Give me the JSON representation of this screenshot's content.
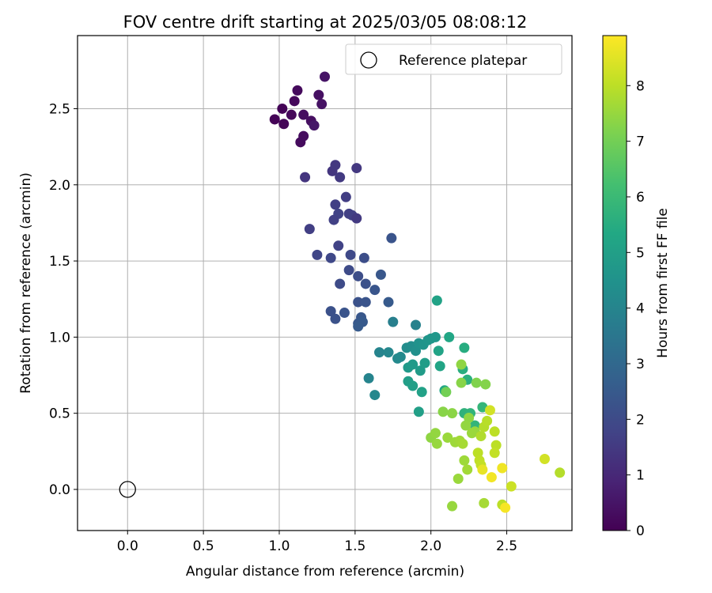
{
  "chart_data": {
    "type": "scatter",
    "title": "FOV centre drift starting at 2025/03/05 08:08:12",
    "xlabel": "Angular distance from reference (arcmin)",
    "ylabel": "Rotation from reference (arcmin)",
    "xlim": [
      -0.33,
      2.93
    ],
    "ylim": [
      -0.27,
      2.98
    ],
    "xticks": [
      0.0,
      0.5,
      1.0,
      1.5,
      2.0,
      2.5
    ],
    "xtick_labels": [
      "0.0",
      "0.5",
      "1.0",
      "1.5",
      "2.0",
      "2.5"
    ],
    "yticks": [
      0.0,
      0.5,
      1.0,
      1.5,
      2.0,
      2.5
    ],
    "ytick_labels": [
      "0.0",
      "0.5",
      "1.0",
      "1.5",
      "2.0",
      "2.5"
    ],
    "grid": true,
    "legend": {
      "placement": "upper right",
      "entries": [
        "Reference platepar"
      ]
    },
    "reference_point": {
      "name": "Reference platepar",
      "x": 0.0,
      "y": 0.0,
      "marker": "open-circle"
    },
    "colorbar": {
      "label": "Hours from first FF file",
      "colormap": "viridis",
      "range": [
        0,
        8.9
      ],
      "ticks": [
        0,
        1,
        2,
        3,
        4,
        5,
        6,
        7,
        8
      ],
      "tick_labels": [
        "0",
        "1",
        "2",
        "3",
        "4",
        "5",
        "6",
        "7",
        "8"
      ]
    },
    "series": [
      {
        "columns": [
          "x",
          "y",
          "hours"
        ],
        "points": [
          [
            0.97,
            2.43,
            0.05
          ],
          [
            1.02,
            2.5,
            0.08
          ],
          [
            1.03,
            2.4,
            0.12
          ],
          [
            1.08,
            2.46,
            0.15
          ],
          [
            1.1,
            2.55,
            0.18
          ],
          [
            1.12,
            2.62,
            0.22
          ],
          [
            1.14,
            2.28,
            0.25
          ],
          [
            1.16,
            2.32,
            0.28
          ],
          [
            1.16,
            2.46,
            0.32
          ],
          [
            1.21,
            2.42,
            0.35
          ],
          [
            1.23,
            2.39,
            0.55
          ],
          [
            1.26,
            2.59,
            0.38
          ],
          [
            1.28,
            2.53,
            0.42
          ],
          [
            1.3,
            2.71,
            0.48
          ],
          [
            1.17,
            2.05,
            1.35
          ],
          [
            1.35,
            2.09,
            1.4
          ],
          [
            1.37,
            2.13,
            1.45
          ],
          [
            1.4,
            2.05,
            1.5
          ],
          [
            1.51,
            2.11,
            1.45
          ],
          [
            1.44,
            1.92,
            1.6
          ],
          [
            1.37,
            1.87,
            1.65
          ],
          [
            1.46,
            1.81,
            1.7
          ],
          [
            1.39,
            1.81,
            1.75
          ],
          [
            1.36,
            1.77,
            1.7
          ],
          [
            1.48,
            1.8,
            1.7
          ],
          [
            1.51,
            1.78,
            1.5
          ],
          [
            1.2,
            1.71,
            1.65
          ],
          [
            1.39,
            1.6,
            1.75
          ],
          [
            1.74,
            1.65,
            2.3
          ],
          [
            1.25,
            1.54,
            1.85
          ],
          [
            1.34,
            1.52,
            1.9
          ],
          [
            1.47,
            1.54,
            1.95
          ],
          [
            1.56,
            1.52,
            2.1
          ],
          [
            1.46,
            1.44,
            2.0
          ],
          [
            1.52,
            1.4,
            2.1
          ],
          [
            1.4,
            1.35,
            2.0
          ],
          [
            1.57,
            1.35,
            2.2
          ],
          [
            1.63,
            1.31,
            2.35
          ],
          [
            1.67,
            1.41,
            2.4
          ],
          [
            1.52,
            1.23,
            2.25
          ],
          [
            1.57,
            1.23,
            2.3
          ],
          [
            1.72,
            1.23,
            2.5
          ],
          [
            1.34,
            1.17,
            2.2
          ],
          [
            1.37,
            1.12,
            2.25
          ],
          [
            1.43,
            1.16,
            2.3
          ],
          [
            1.54,
            1.13,
            2.4
          ],
          [
            1.52,
            1.09,
            2.45
          ],
          [
            1.55,
            1.1,
            2.5
          ],
          [
            1.52,
            1.07,
            2.55
          ],
          [
            1.75,
            1.1,
            3.8
          ],
          [
            1.9,
            1.08,
            3.9
          ],
          [
            1.66,
            0.9,
            4.0
          ],
          [
            1.72,
            0.9,
            4.1
          ],
          [
            1.78,
            0.86,
            4.15
          ],
          [
            1.8,
            0.87,
            4.2
          ],
          [
            1.84,
            0.93,
            4.3
          ],
          [
            1.87,
            0.94,
            4.35
          ],
          [
            1.9,
            0.91,
            4.4
          ],
          [
            1.92,
            0.96,
            4.5
          ],
          [
            1.95,
            0.95,
            4.55
          ],
          [
            1.98,
            0.98,
            4.6
          ],
          [
            2.0,
            0.99,
            4.65
          ],
          [
            2.03,
            1.0,
            4.7
          ],
          [
            1.85,
            0.8,
            4.75
          ],
          [
            1.88,
            0.82,
            4.8
          ],
          [
            1.93,
            0.78,
            4.85
          ],
          [
            1.96,
            0.83,
            4.9
          ],
          [
            1.85,
            0.71,
            4.95
          ],
          [
            1.88,
            0.68,
            5.0
          ],
          [
            1.94,
            0.64,
            5.05
          ],
          [
            1.59,
            0.73,
            4.0
          ],
          [
            1.63,
            0.62,
            4.1
          ],
          [
            1.92,
            0.51,
            5.0
          ],
          [
            2.04,
            1.24,
            5.1
          ],
          [
            2.05,
            0.91,
            5.15
          ],
          [
            2.06,
            0.81,
            5.2
          ],
          [
            2.12,
            1.0,
            5.25
          ],
          [
            2.09,
            0.65,
            5.3
          ],
          [
            2.22,
            0.93,
            5.5
          ],
          [
            2.21,
            0.79,
            5.55
          ],
          [
            2.24,
            0.72,
            5.6
          ],
          [
            2.22,
            0.5,
            5.7
          ],
          [
            2.26,
            0.5,
            5.75
          ],
          [
            2.29,
            0.42,
            5.8
          ],
          [
            2.34,
            0.54,
            5.85
          ],
          [
            2.2,
            0.82,
            7.4
          ],
          [
            2.2,
            0.7,
            7.3
          ],
          [
            2.3,
            0.7,
            7.2
          ],
          [
            2.36,
            0.69,
            7.25
          ],
          [
            2.1,
            0.64,
            7.0
          ],
          [
            2.08,
            0.51,
            7.3
          ],
          [
            2.14,
            0.5,
            7.35
          ],
          [
            2.25,
            0.47,
            7.4
          ],
          [
            2.23,
            0.42,
            7.45
          ],
          [
            2.29,
            0.38,
            7.5
          ],
          [
            2.27,
            0.37,
            7.55
          ],
          [
            2.33,
            0.35,
            7.85
          ],
          [
            2.35,
            0.41,
            7.9
          ],
          [
            2.37,
            0.45,
            7.95
          ],
          [
            2.39,
            0.52,
            8.3
          ],
          [
            2.42,
            0.38,
            8.0
          ],
          [
            2.0,
            0.34,
            7.4
          ],
          [
            2.03,
            0.37,
            7.45
          ],
          [
            2.04,
            0.3,
            7.5
          ],
          [
            2.11,
            0.34,
            7.55
          ],
          [
            2.16,
            0.31,
            7.6
          ],
          [
            2.19,
            0.32,
            7.65
          ],
          [
            2.21,
            0.3,
            7.7
          ],
          [
            2.31,
            0.24,
            8.0
          ],
          [
            2.32,
            0.19,
            8.05
          ],
          [
            2.33,
            0.16,
            8.1
          ],
          [
            2.34,
            0.13,
            8.6
          ],
          [
            2.22,
            0.19,
            7.6
          ],
          [
            2.24,
            0.13,
            7.65
          ],
          [
            2.18,
            0.07,
            7.55
          ],
          [
            2.43,
            0.29,
            8.0
          ],
          [
            2.42,
            0.24,
            8.1
          ],
          [
            2.47,
            0.14,
            8.7
          ],
          [
            2.4,
            0.08,
            8.75
          ],
          [
            2.14,
            -0.11,
            7.5
          ],
          [
            2.35,
            -0.09,
            7.7
          ],
          [
            2.47,
            -0.1,
            8.0
          ],
          [
            2.49,
            -0.12,
            8.8
          ],
          [
            2.53,
            0.02,
            8.2
          ],
          [
            2.75,
            0.2,
            8.3
          ],
          [
            2.85,
            0.11,
            7.9
          ]
        ]
      }
    ]
  }
}
